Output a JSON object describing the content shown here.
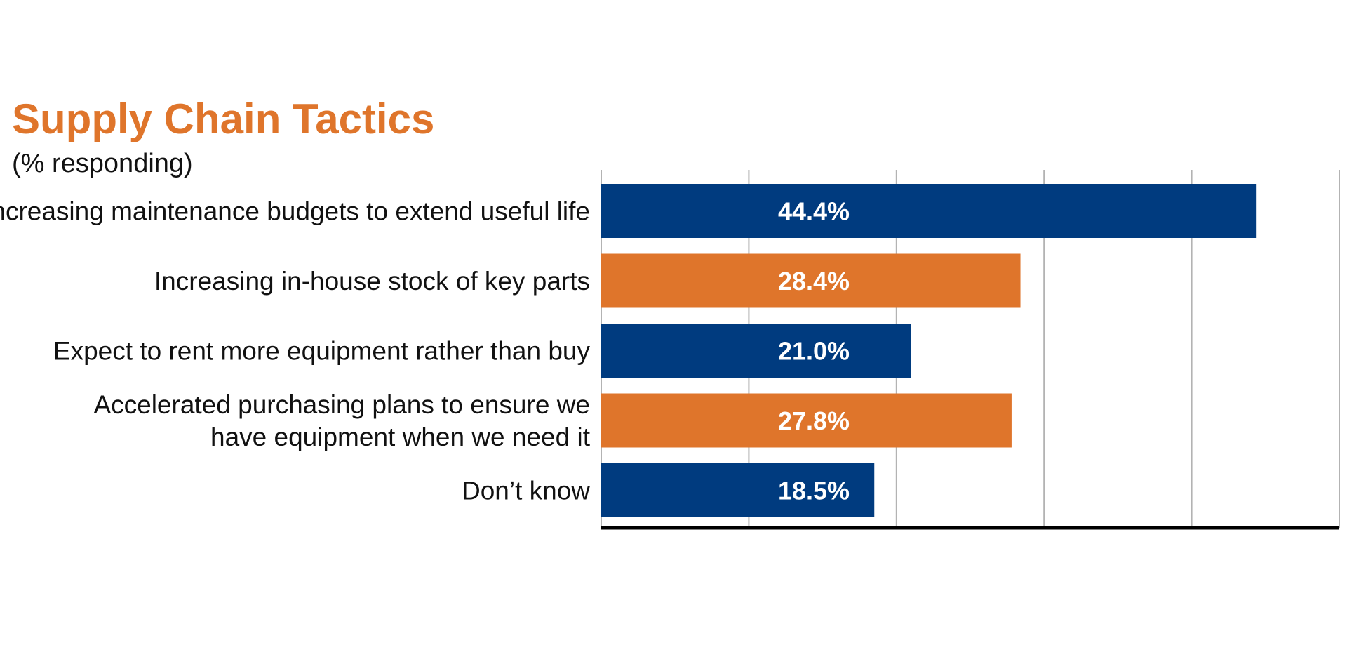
{
  "colors": {
    "title": "#df752b",
    "blue": "#003b7f",
    "orange": "#df752b",
    "grid": "#b3b3b3",
    "axis": "#000000"
  },
  "chart_data": {
    "type": "bar",
    "orientation": "horizontal",
    "title": "Supply Chain Tactics",
    "subtitle": "(% responding)",
    "xlim": [
      0,
      50
    ],
    "grid_ticks": [
      0,
      10,
      20,
      30,
      40,
      50
    ],
    "grid": true,
    "categories": [
      [
        "Increasing maintenance budgets to extend useful life"
      ],
      [
        "Increasing in-house stock of key parts"
      ],
      [
        "Expect to rent more equipment rather than buy"
      ],
      [
        "Accelerated purchasing plans to ensure we",
        "have equipment when we need it"
      ],
      [
        "Don’t know"
      ]
    ],
    "values": [
      44.4,
      28.4,
      21.0,
      27.8,
      18.5
    ],
    "data_labels": [
      "44.4%",
      "28.4%",
      "21.0%",
      "27.8%",
      "18.5%"
    ],
    "bar_colors": [
      "blue",
      "orange",
      "blue",
      "orange",
      "blue"
    ]
  }
}
